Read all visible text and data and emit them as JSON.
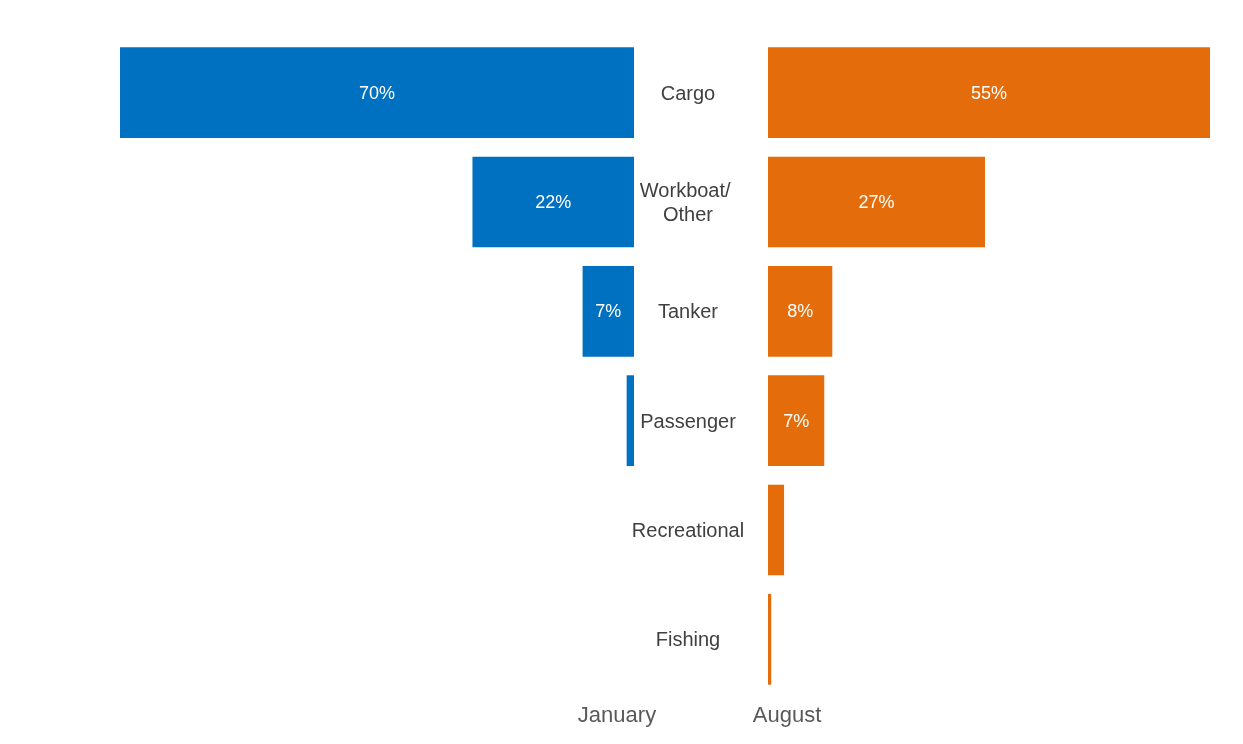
{
  "chart_data": [
    {
      "type": "bar",
      "orientation": "horizontal",
      "tick_labels": false,
      "xlabel": "January",
      "xlim": [
        70,
        0
      ],
      "categories": [
        "Cargo",
        "Workboat/ Other",
        "Tanker",
        "Passenger",
        "Recreational",
        "Fishing"
      ],
      "series": [
        {
          "color": "#0070c0",
          "values": [
            70,
            22,
            7,
            1,
            0,
            0
          ],
          "value_labels": [
            "70%",
            "22%",
            "7%",
            null,
            null,
            null
          ]
        }
      ]
    },
    {
      "type": "bar",
      "orientation": "horizontal",
      "tick_labels": "y",
      "xlabel": "August",
      "xlim": [
        0,
        55
      ],
      "categories": [
        "Cargo",
        "Workboat/ Other",
        "Tanker",
        "Passenger",
        "Recreational",
        "Fishing"
      ],
      "series": [
        {
          "color": "#e46c0a",
          "values": [
            55,
            27,
            8,
            7,
            2,
            0.4
          ],
          "value_labels": [
            "55%",
            "27%",
            "8%",
            "7%",
            null,
            null
          ]
        }
      ]
    }
  ]
}
